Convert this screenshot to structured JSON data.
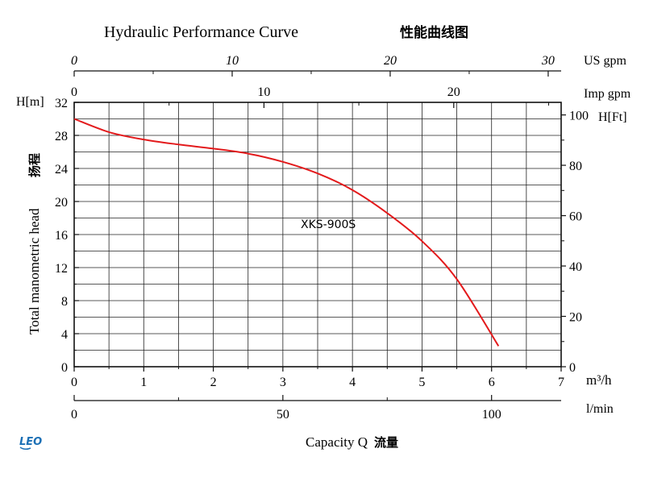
{
  "chart_data": {
    "type": "line",
    "title": "Hydraulic Performance Curve",
    "title_cn": "性能曲线图",
    "annotation": "XKS-900S",
    "xlabel": "Capacity Q",
    "xlabel_cn": "流量",
    "ylabel": "Total manometric head",
    "ylabel_cn": "扬程",
    "x_unit": "m³/h",
    "y_unit": "H[m]",
    "xlim": [
      0,
      7
    ],
    "ylim": [
      0,
      32
    ],
    "grid": true,
    "series": [
      {
        "color": "#e31a1c",
        "x": [
          0,
          0.5,
          1,
          1.5,
          2,
          2.5,
          3,
          3.5,
          4,
          4.5,
          5,
          5.5,
          6.1
        ],
        "y": [
          30,
          28.4,
          27.5,
          26.9,
          26.4,
          25.8,
          24.8,
          23.4,
          21.4,
          18.6,
          15.2,
          10.6,
          2.5
        ]
      }
    ],
    "x_ticks": [
      "0",
      "1",
      "2",
      "3",
      "4",
      "5",
      "6",
      "7"
    ],
    "y_ticks": [
      "0",
      "4",
      "8",
      "12",
      "16",
      "20",
      "24",
      "28",
      "32"
    ],
    "secondary_axes": {
      "top_us_gpm": {
        "label": "US gpm",
        "ticks": [
          "0",
          "10",
          "20",
          "30"
        ],
        "max": 30.82
      },
      "top_imp_gpm": {
        "label": "Imp gpm",
        "ticks": [
          "0",
          "10",
          "20"
        ],
        "max": 25.66
      },
      "bottom_lmin": {
        "label": "l/min",
        "ticks": [
          "0",
          "50",
          "100"
        ],
        "max": 116.67
      },
      "right_ft": {
        "label": "H[Ft]",
        "ticks": [
          "0",
          "20",
          "40",
          "60",
          "80",
          "100"
        ],
        "max": 104.99
      }
    }
  },
  "logo_text": "LEO",
  "colors": {
    "curve": "#e31a1c",
    "logo": "#1b6fb5"
  }
}
